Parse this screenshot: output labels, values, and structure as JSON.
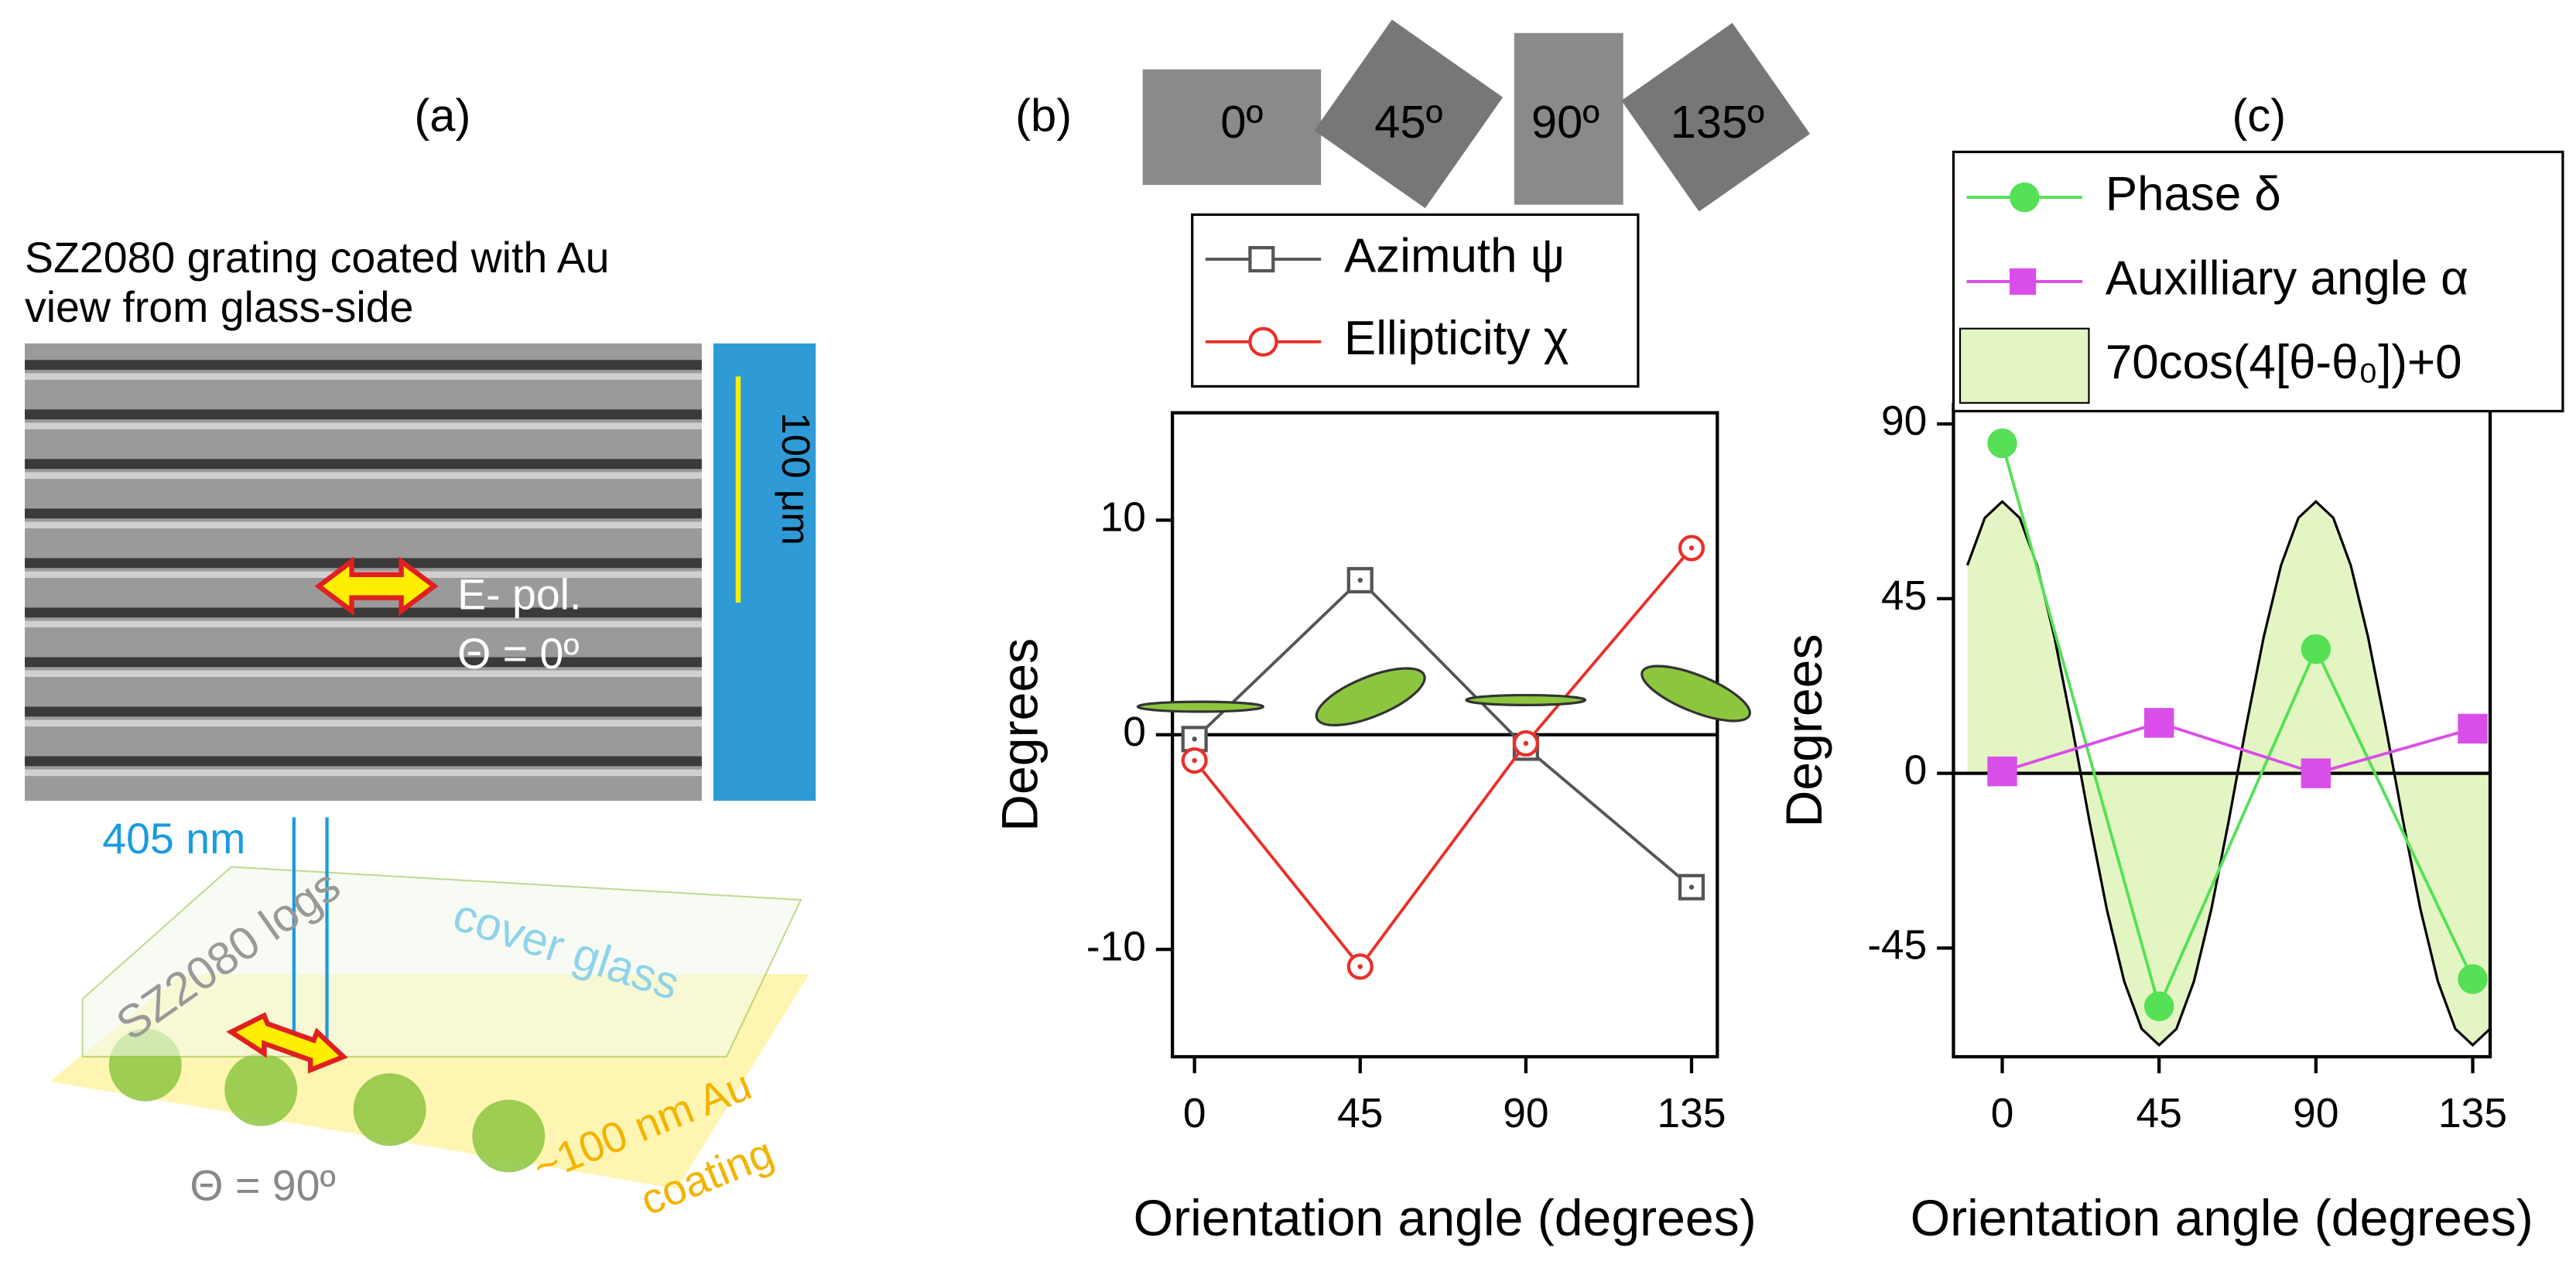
{
  "panel_a": {
    "title": "(a)",
    "caption_1": "SZ2080 grating coated with Au",
    "caption_2": "view from glass-side",
    "scale": "100 μm",
    "pol_1": "E- pol.",
    "pol_2": "Θ = 0º",
    "laser": "405 nm",
    "glass": "cover glass",
    "logs": "SZ2080 logs",
    "angle": "Θ = 90º",
    "coating_1": "~100 nm Au",
    "coating_2": "coating"
  },
  "panel_b_images": [
    "0º",
    "45º",
    "90º",
    "135º"
  ],
  "chart_data": [
    {
      "type": "line",
      "title": "(b)",
      "xlabel": "Orientation angle (degrees)",
      "ylabel": "Degrees",
      "xlim": [
        -6,
        142
      ],
      "ylim": [
        -15,
        15
      ],
      "xticks": [
        0,
        45,
        90,
        135
      ],
      "yticks": [
        -10,
        0,
        10
      ],
      "series": [
        {
          "name": "Azimuth ψ",
          "color": "#555555",
          "marker": "square",
          "filled": false,
          "x": [
            0,
            45,
            90,
            135
          ],
          "values": [
            -0.2,
            7.2,
            -0.6,
            -7.1
          ]
        },
        {
          "name": "Ellipticity χ",
          "color": "#e8302a",
          "marker": "circle",
          "filled": false,
          "x": [
            0,
            45,
            90,
            135
          ],
          "values": [
            -1.2,
            -10.8,
            -0.4,
            8.7
          ]
        }
      ]
    },
    {
      "type": "line",
      "title": "(c)",
      "xlabel": "Orientation angle (degrees)",
      "ylabel": "Degrees",
      "xlim": [
        -14,
        140
      ],
      "ylim": [
        -73,
        95
      ],
      "xticks": [
        0,
        45,
        90,
        135
      ],
      "yticks": [
        -45,
        0,
        45,
        90
      ],
      "series": [
        {
          "name": "Phase δ",
          "color": "#55e055",
          "marker": "circle",
          "filled": true,
          "x": [
            0,
            45,
            90,
            135
          ],
          "values": [
            85,
            -60,
            32,
            -53
          ]
        },
        {
          "name": "Auxilliary angle α",
          "color": "#d94ee8",
          "marker": "square",
          "filled": true,
          "x": [
            0,
            45,
            90,
            135
          ],
          "values": [
            0.5,
            13,
            0,
            11.5
          ]
        },
        {
          "name": "70cos(4[θ-θ₀])+0",
          "color": "#e4f5c4",
          "marker": "area",
          "x": [
            -10,
            -5,
            0,
            5,
            10,
            15,
            20,
            25,
            30,
            35,
            40,
            45,
            50,
            55,
            60,
            65,
            70,
            75,
            80,
            85,
            90,
            95,
            100,
            105,
            110,
            115,
            120,
            125,
            130,
            135,
            140
          ],
          "values": [
            53.6,
            65.8,
            70,
            65.8,
            53.6,
            35,
            12.2,
            -12.2,
            -35,
            -53.6,
            -65.8,
            -70,
            -65.8,
            -53.6,
            -35,
            -12.2,
            12.2,
            35,
            53.6,
            65.8,
            70,
            65.8,
            53.6,
            35,
            12.2,
            -12.2,
            -35,
            -53.6,
            -65.8,
            -70,
            -65.8
          ]
        }
      ]
    }
  ]
}
